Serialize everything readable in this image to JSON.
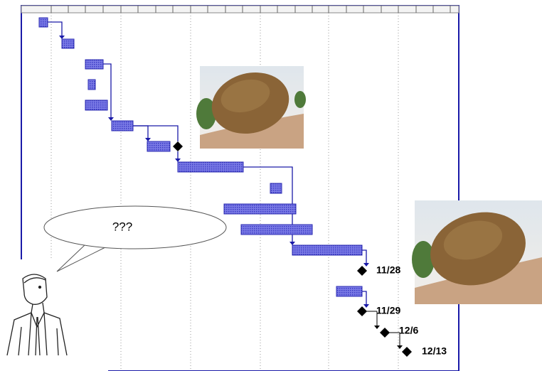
{
  "speech_bubble": {
    "text": "???"
  },
  "milestone_labels": [
    "11/28",
    "11/29",
    "12/6",
    "12/13"
  ]
}
